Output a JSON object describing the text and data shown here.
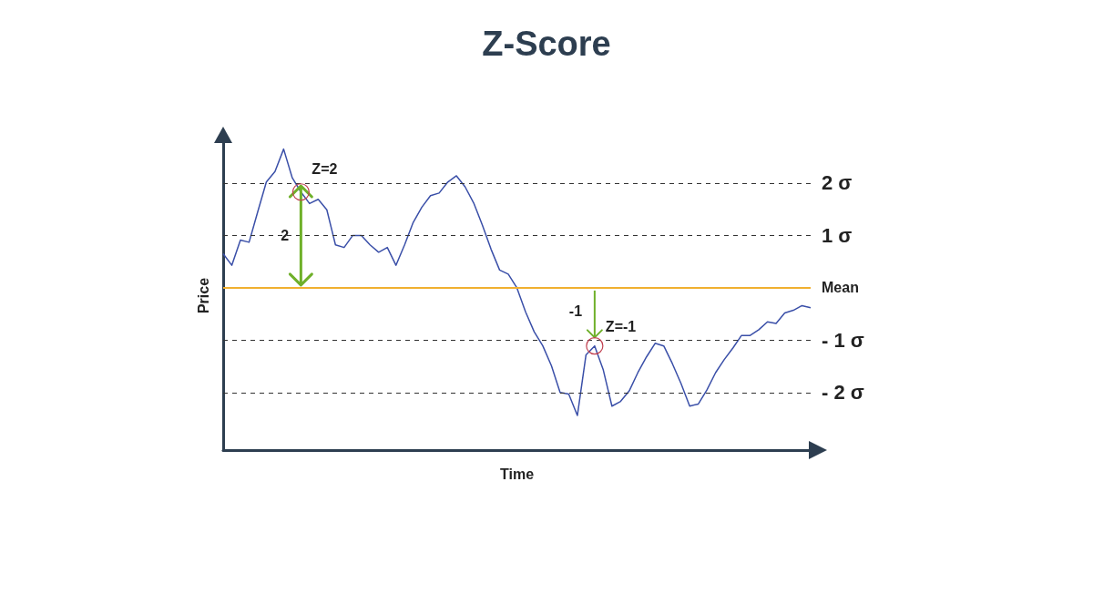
{
  "chart_data": {
    "type": "line",
    "title": "Z-Score",
    "xlabel": "Time",
    "ylabel": "Price",
    "categories": [
      null,
      null,
      null,
      null,
      null,
      null,
      null,
      null,
      null,
      null,
      null,
      null,
      null,
      null,
      null,
      null,
      null,
      null,
      null,
      null,
      null,
      null,
      null,
      null,
      null,
      null,
      null,
      null,
      null,
      null,
      null,
      null,
      null,
      null,
      null,
      null,
      null,
      null,
      null,
      null,
      null,
      null,
      null,
      null,
      null,
      null,
      null,
      null,
      null,
      null,
      null,
      null,
      null,
      null,
      null,
      null,
      null,
      null,
      null,
      null,
      null,
      null,
      null,
      null,
      null,
      null,
      null,
      null,
      null
    ],
    "series": [
      {
        "color": "#3a4fa8",
        "values": [
          0.65,
          0.43,
          0.91,
          0.87,
          1.45,
          2.02,
          2.22,
          2.65,
          2.1,
          1.83,
          1.61,
          1.69,
          1.49,
          0.82,
          0.77,
          1.0,
          1.0,
          0.82,
          0.68,
          0.77,
          0.43,
          0.82,
          1.25,
          1.54,
          1.76,
          1.81,
          2.02,
          2.14,
          1.93,
          1.62,
          1.2,
          0.74,
          0.34,
          0.26,
          0,
          -0.46,
          -0.84,
          -1.11,
          -1.49,
          -2.0,
          -2.03,
          -2.44,
          -1.28,
          -1.11,
          -1.57,
          -2.26,
          -2.17,
          -1.97,
          -1.62,
          -1.32,
          -1.06,
          -1.11,
          -1.45,
          -1.83,
          -2.26,
          -2.22,
          -1.95,
          -1.62,
          -1.37,
          -1.15,
          -0.91,
          -0.91,
          -0.8,
          -0.65,
          -0.68,
          -0.48,
          -0.43,
          -0.34,
          -0.38
        ]
      }
    ],
    "ylim": [
      -3.1,
      2.8
    ],
    "ref_lines": [
      {
        "axis": "y",
        "value": 2,
        "label": "2 σ",
        "color": "#333333",
        "line_style": "dashed"
      },
      {
        "axis": "y",
        "value": 1,
        "label": "1 σ",
        "color": "#333333",
        "line_style": "dashed"
      },
      {
        "axis": "y",
        "value": 0,
        "label": "Mean",
        "color": "#f0b030",
        "line_style": "solid"
      },
      {
        "axis": "y",
        "value": -1,
        "label": "- 1 σ",
        "color": "#333333",
        "line_style": "dashed"
      },
      {
        "axis": "y",
        "value": -2,
        "label": "- 2 σ",
        "color": "#333333",
        "line_style": "dashed"
      }
    ],
    "annotations": [
      "Z=2",
      "2",
      "Z=-1",
      "-1"
    ],
    "grid": false,
    "marker": "none",
    "line_style": "solid"
  }
}
